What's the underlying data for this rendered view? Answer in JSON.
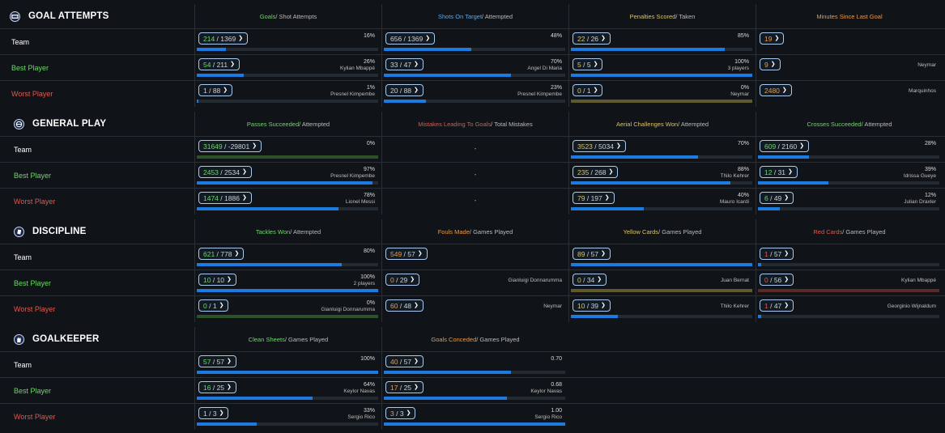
{
  "colors": {
    "green": "#6cd868",
    "blue": "#5ba7ea",
    "gold": "#d9c36a",
    "orange": "#e79a4d",
    "red": "#e2574c",
    "bar_blue": "#1d7ae0",
    "bar_olive": "#5e5a2e",
    "bar_green": "#2d5128",
    "bar_maroon": "#5a2a28"
  },
  "sections": [
    {
      "title": "GOAL ATTEMPTS",
      "icon": "goal-icon",
      "rows": [
        {
          "label": "Team",
          "color": "#ffffff"
        },
        {
          "label": "Best Player",
          "color": "#6cd868"
        },
        {
          "label": "Worst Player",
          "color": "#e2574c"
        }
      ],
      "columns": [
        {
          "head_main": "Goals",
          "head_main_color": "#6cd868",
          "head_rest": " / Shot Attempts",
          "cells": [
            {
              "num": "214",
              "den": "1369",
              "num_color": "#6cd868",
              "pct": "16%",
              "who": "",
              "fill": 0.16
            },
            {
              "num": "54",
              "den": "211",
              "num_color": "#6cd868",
              "pct": "26%",
              "who": "Kylian Mbappé",
              "fill": 0.26
            },
            {
              "num": "1",
              "den": "88",
              "num_color": "#d0d0d0",
              "pct": "1%",
              "who": "Presnel Kimpembe",
              "fill": 0.01
            }
          ]
        },
        {
          "head_main": "Shots On Target",
          "head_main_color": "#5ba7ea",
          "head_rest": " / Attempted",
          "cells": [
            {
              "num": "656",
              "den": "1369",
              "num_color": "#d0d0d0",
              "pct": "48%",
              "who": "",
              "fill": 0.48
            },
            {
              "num": "33",
              "den": "47",
              "num_color": "#d0d0d0",
              "pct": "70%",
              "who": "Angel Di Maria",
              "fill": 0.7
            },
            {
              "num": "20",
              "den": "88",
              "num_color": "#d0d0d0",
              "pct": "23%",
              "who": "Presnel Kimpembe",
              "fill": 0.23
            }
          ]
        },
        {
          "head_main": "Penalties Scored",
          "head_main_color": "#d9c36a",
          "head_rest": " / Taken",
          "cells": [
            {
              "num": "22",
              "den": "26",
              "num_color": "#d9c36a",
              "pct": "85%",
              "who": "",
              "fill": 0.85
            },
            {
              "num": "5",
              "den": "5",
              "num_color": "#d9c36a",
              "pct": "100%",
              "who": "3 players",
              "fill": 1.0
            },
            {
              "num": "0",
              "den": "1",
              "num_color": "#d9c36a",
              "pct": "0%",
              "who": "Neymar",
              "fill": 0,
              "track_color": "#5e5a2e"
            }
          ]
        },
        {
          "head_main": "Minutes Since Last Goal",
          "head_main_color": "#e79a4d",
          "head_rest": "",
          "cells": [
            {
              "num": "19",
              "den": "",
              "num_color": "#e79a4d",
              "pct": "",
              "who": "",
              "nobar": true
            },
            {
              "num": "9",
              "den": "",
              "num_color": "#e79a4d",
              "pct": "",
              "who": "Neymar",
              "nobar": true
            },
            {
              "num": "2480",
              "den": "",
              "num_color": "#e79a4d",
              "pct": "",
              "who": "Marquinhos",
              "nobar": true
            }
          ]
        }
      ]
    },
    {
      "title": "GENERAL PLAY",
      "icon": "ball-icon",
      "rows": [
        {
          "label": "Team",
          "color": "#ffffff"
        },
        {
          "label": "Best Player",
          "color": "#6cd868"
        },
        {
          "label": "Worst Player",
          "color": "#e2574c"
        }
      ],
      "columns": [
        {
          "head_main": "Passes Succeeded",
          "head_main_color": "#6cd868",
          "head_rest": " / Attempted",
          "cells": [
            {
              "num": "31649",
              "den": "-29801",
              "num_color": "#6cd868",
              "pct": "0%",
              "who": "",
              "fill": 0,
              "track_color": "#2d5128"
            },
            {
              "num": "2453",
              "den": "2534",
              "num_color": "#6cd868",
              "pct": "97%",
              "who": "Presnel Kimpembe",
              "fill": 0.97
            },
            {
              "num": "1474",
              "den": "1886",
              "num_color": "#6cd868",
              "pct": "78%",
              "who": "Lionel Messi",
              "fill": 0.78
            }
          ]
        },
        {
          "head_main": "Mistakes Leading To Goals",
          "head_main_color": "#e2574c",
          "head_rest": " / Total Mistakes",
          "cells": [
            {
              "empty": "-"
            },
            {
              "empty": "-"
            },
            {
              "empty": "-"
            }
          ]
        },
        {
          "head_main": "Aerial Challenges Won",
          "head_main_color": "#d9c36a",
          "head_rest": " / Attempted",
          "cells": [
            {
              "num": "3523",
              "den": "5034",
              "num_color": "#d9c36a",
              "pct": "70%",
              "who": "",
              "fill": 0.7
            },
            {
              "num": "235",
              "den": "268",
              "num_color": "#d9c36a",
              "pct": "88%",
              "who": "Thilo Kehrer",
              "fill": 0.88
            },
            {
              "num": "79",
              "den": "197",
              "num_color": "#d9c36a",
              "pct": "40%",
              "who": "Mauro Icardi",
              "fill": 0.4
            }
          ]
        },
        {
          "head_main": "Crosses Succeeded",
          "head_main_color": "#6cd868",
          "head_rest": " / Attempted",
          "cells": [
            {
              "num": "609",
              "den": "2160",
              "num_color": "#6cd868",
              "pct": "28%",
              "who": "",
              "fill": 0.28
            },
            {
              "num": "12",
              "den": "31",
              "num_color": "#6cd868",
              "pct": "39%",
              "who": "Idrissa Gueye",
              "fill": 0.39
            },
            {
              "num": "6",
              "den": "49",
              "num_color": "#6cd868",
              "pct": "12%",
              "who": "Julian Draxler",
              "fill": 0.12
            }
          ]
        }
      ]
    },
    {
      "title": "DISCIPLINE",
      "icon": "card-icon",
      "rows": [
        {
          "label": "Team",
          "color": "#ffffff"
        },
        {
          "label": "Best Player",
          "color": "#6cd868"
        },
        {
          "label": "Worst Player",
          "color": "#e2574c"
        }
      ],
      "columns": [
        {
          "head_main": "Tackles Won",
          "head_main_color": "#6cd868",
          "head_rest": " / Attempted",
          "cells": [
            {
              "num": "621",
              "den": "778",
              "num_color": "#6cd868",
              "pct": "80%",
              "who": "",
              "fill": 0.8
            },
            {
              "num": "10",
              "den": "10",
              "num_color": "#6cd868",
              "pct": "100%",
              "who": "2 players",
              "fill": 1.0
            },
            {
              "num": "0",
              "den": "1",
              "num_color": "#6cd868",
              "pct": "0%",
              "who": "Gianluigi Donnarumma",
              "fill": 0,
              "track_color": "#2d5128"
            }
          ]
        },
        {
          "head_main": "Fouls Made",
          "head_main_color": "#e79a4d",
          "head_rest": " / Games Played",
          "cells": [
            {
              "num": "549",
              "den": "57",
              "num_color": "#e79a4d",
              "pct": "",
              "who": "",
              "nobar": true
            },
            {
              "num": "0",
              "den": "29",
              "num_color": "#e79a4d",
              "pct": "",
              "who": "Gianluigi Donnarumma",
              "nobar": true
            },
            {
              "num": "60",
              "den": "48",
              "num_color": "#e79a4d",
              "pct": "",
              "who": "Neymar",
              "nobar": true
            }
          ]
        },
        {
          "head_main": "Yellow Cards",
          "head_main_color": "#d9c36a",
          "head_rest": " / Games Played",
          "cells": [
            {
              "num": "89",
              "den": "57",
              "num_color": "#d9c36a",
              "pct": "",
              "who": "",
              "fill": 1.0
            },
            {
              "num": "0",
              "den": "34",
              "num_color": "#d9c36a",
              "pct": "",
              "who": "Juan Bernat",
              "fill": 0,
              "track_color": "#5e5a2e"
            },
            {
              "num": "10",
              "den": "39",
              "num_color": "#d9c36a",
              "pct": "",
              "who": "Thilo Kehrer",
              "fill": 0.26
            }
          ]
        },
        {
          "head_main": "Red Cards",
          "head_main_color": "#e2574c",
          "head_rest": " / Games Played",
          "cells": [
            {
              "num": "1",
              "den": "57",
              "num_color": "#e2574c",
              "pct": "",
              "who": "",
              "fill": 0.02
            },
            {
              "num": "0",
              "den": "56",
              "num_color": "#e2574c",
              "pct": "",
              "who": "Kylian Mbappé",
              "fill": 0,
              "track_color": "#5a2a28"
            },
            {
              "num": "1",
              "den": "47",
              "num_color": "#e2574c",
              "pct": "",
              "who": "Georginio Wijnaldum",
              "fill": 0.02
            }
          ]
        }
      ]
    },
    {
      "title": "GOALKEEPER",
      "icon": "glove-icon",
      "rows": [
        {
          "label": "Team",
          "color": "#ffffff"
        },
        {
          "label": "Best Player",
          "color": "#6cd868"
        },
        {
          "label": "Worst Player",
          "color": "#e2574c"
        }
      ],
      "columns": [
        {
          "head_main": "Clean Sheets",
          "head_main_color": "#6cd868",
          "head_rest": " / Games Played",
          "cells": [
            {
              "num": "57",
              "den": "57",
              "num_color": "#6cd868",
              "pct": "100%",
              "who": "",
              "fill": 1.0
            },
            {
              "num": "16",
              "den": "25",
              "num_color": "#6cd868",
              "pct": "64%",
              "who": "Keylor Navas",
              "fill": 0.64
            },
            {
              "num": "1",
              "den": "3",
              "num_color": "#d0d0d0",
              "pct": "33%",
              "who": "Sergio Rico",
              "fill": 0.33
            }
          ]
        },
        {
          "head_main": "Goals Conceded",
          "head_main_color": "#e79a4d",
          "head_rest": " / Games Played",
          "cells": [
            {
              "num": "40",
              "den": "57",
              "num_color": "#e79a4d",
              "pct": "0.70",
              "who": "",
              "fill": 0.7
            },
            {
              "num": "17",
              "den": "25",
              "num_color": "#e79a4d",
              "pct": "0.68",
              "who": "Keylor Navas",
              "fill": 0.68
            },
            {
              "num": "3",
              "den": "3",
              "num_color": "#e79a4d",
              "pct": "1.00",
              "who": "Sergio Rico",
              "fill": 1.0
            }
          ]
        }
      ]
    }
  ]
}
